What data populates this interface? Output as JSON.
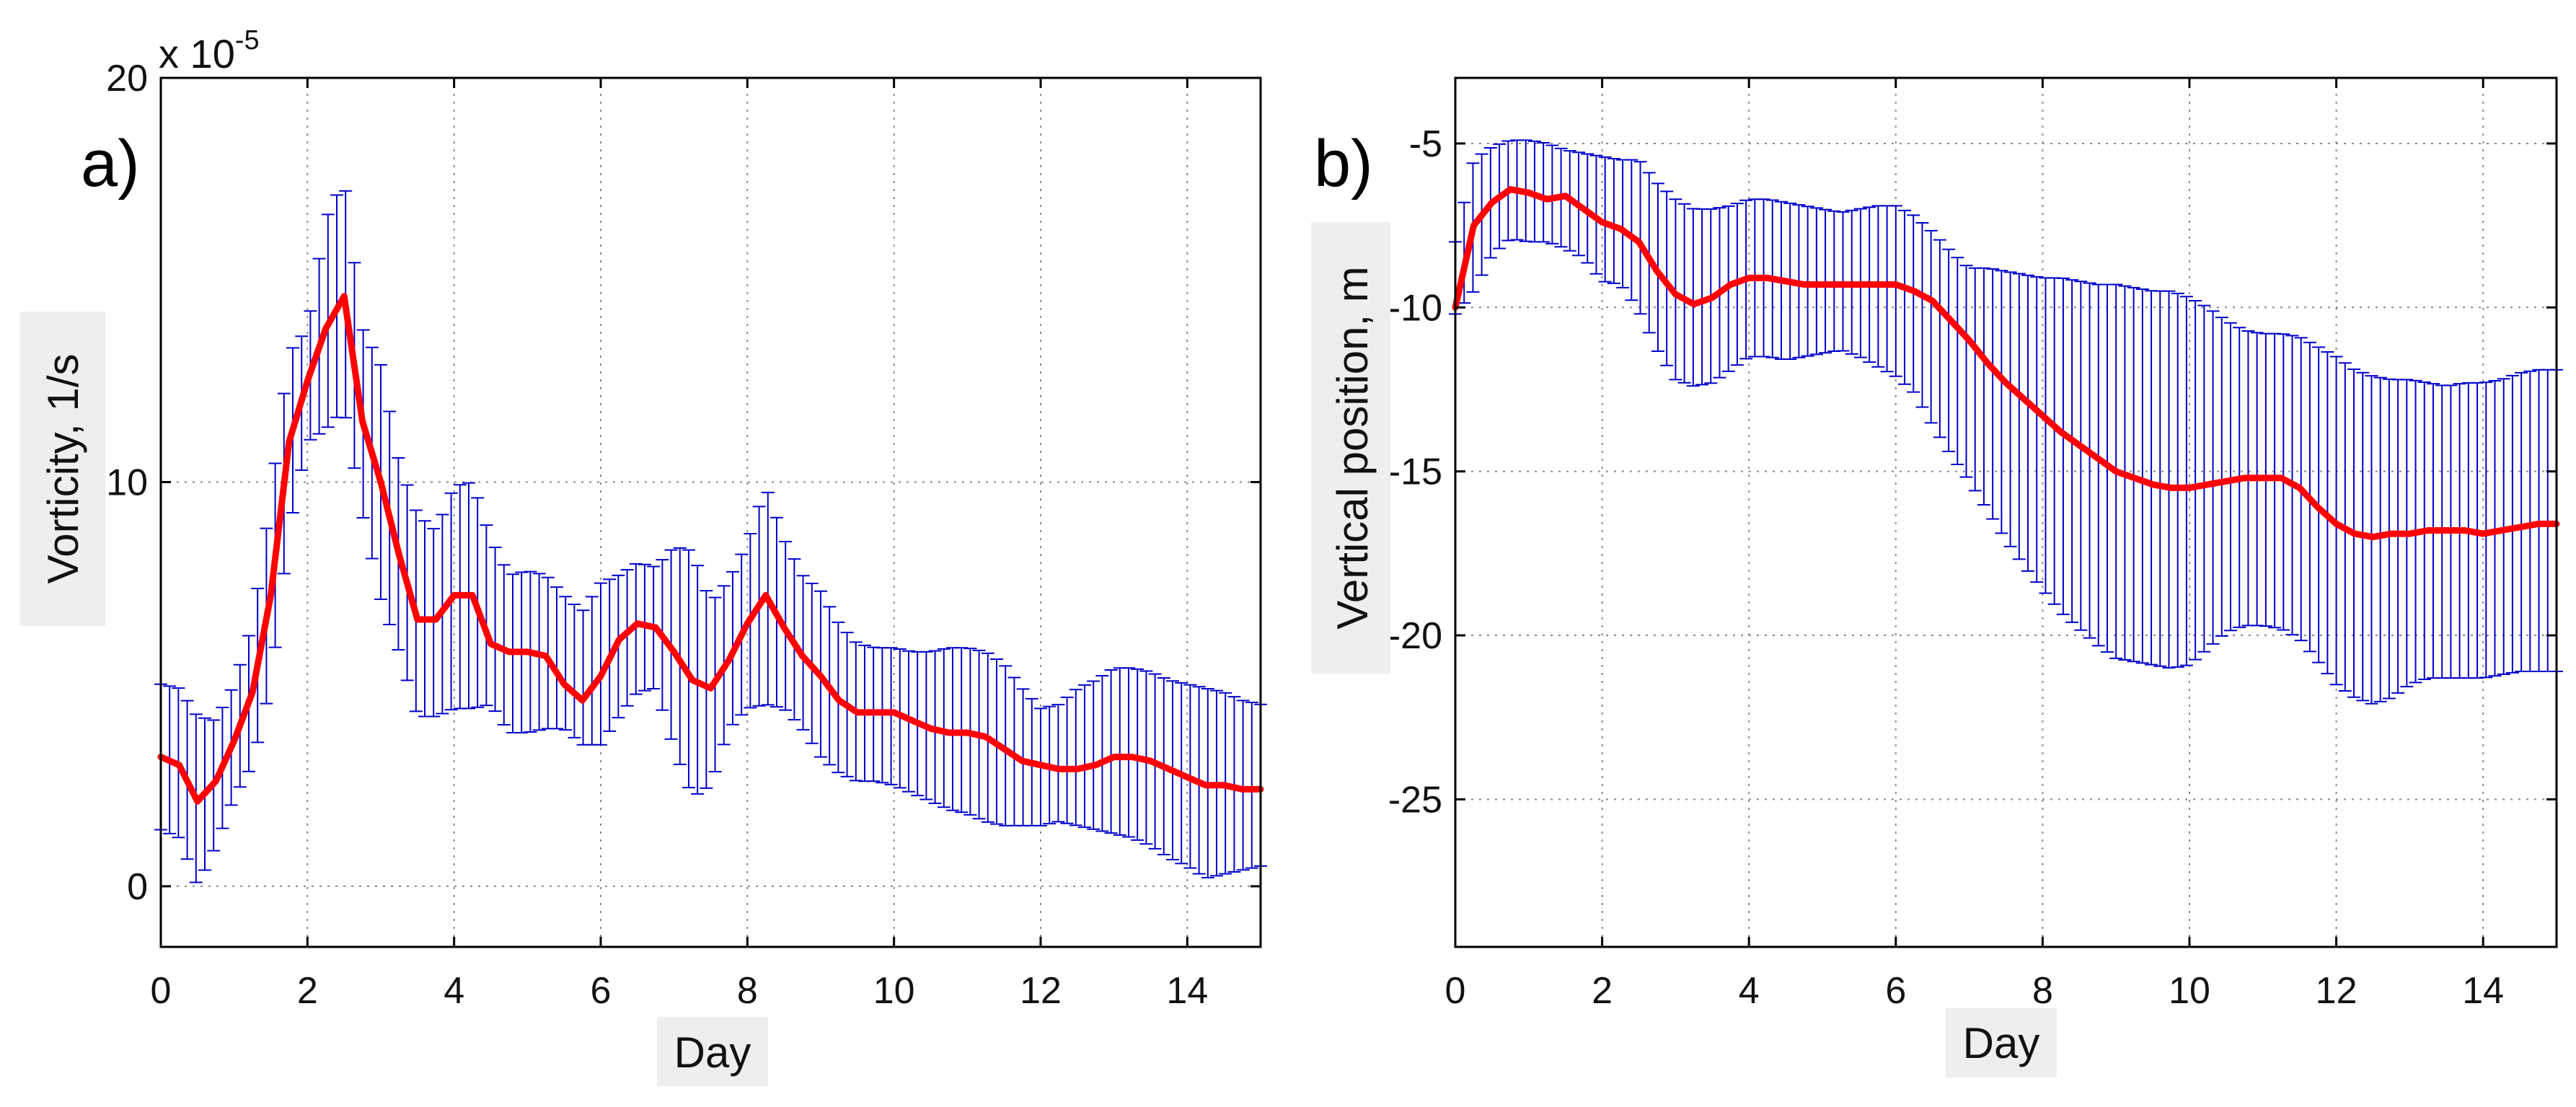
{
  "chart_data": [
    {
      "type": "line",
      "panel_label": "a)",
      "title": "",
      "xlabel": "Day",
      "ylabel": "Vorticity, 1/s",
      "y_multiplier": "x 10",
      "y_multiplier_exponent": "-5",
      "xlim": [
        0,
        15
      ],
      "ylim": [
        -1.5,
        20
      ],
      "xticks": [
        0,
        2,
        4,
        6,
        8,
        10,
        12,
        14
      ],
      "xtick_labels": [
        "0",
        "2",
        "4",
        "6",
        "8",
        "10",
        "12",
        "14"
      ],
      "yticks": [
        0,
        10,
        20
      ],
      "ytick_labels": [
        "0",
        "10",
        "20"
      ],
      "grid": true,
      "legend": "none",
      "series": [
        {
          "name": "mean",
          "color": "#ff0000",
          "x": [
            0,
            0.25,
            0.5,
            0.75,
            1,
            1.25,
            1.5,
            1.75,
            2,
            2.25,
            2.5,
            2.75,
            3,
            3.25,
            3.5,
            3.75,
            4,
            4.25,
            4.5,
            4.75,
            5,
            5.25,
            5.5,
            5.75,
            6,
            6.25,
            6.5,
            6.75,
            7,
            7.25,
            7.5,
            7.75,
            8,
            8.25,
            8.5,
            8.75,
            9,
            9.25,
            9.5,
            9.75,
            10,
            10.25,
            10.5,
            10.75,
            11,
            11.25,
            11.5,
            11.75,
            12,
            12.25,
            12.5,
            12.75,
            13,
            13.25,
            13.5,
            13.75,
            14,
            14.25,
            14.5,
            14.75,
            15
          ],
          "values": [
            3.2,
            3.0,
            2.1,
            2.6,
            3.6,
            4.8,
            7.2,
            11.0,
            12.5,
            13.8,
            14.6,
            11.5,
            10.0,
            8.2,
            6.6,
            6.6,
            7.2,
            7.2,
            6.0,
            5.8,
            5.8,
            5.7,
            5.0,
            4.6,
            5.2,
            6.1,
            6.5,
            6.4,
            5.8,
            5.1,
            4.9,
            5.6,
            6.5,
            7.2,
            6.4,
            5.7,
            5.2,
            4.6,
            4.3,
            4.3,
            4.3,
            4.1,
            3.9,
            3.8,
            3.8,
            3.7,
            3.4,
            3.1,
            3.0,
            2.9,
            2.9,
            3.0,
            3.2,
            3.2,
            3.1,
            2.9,
            2.7,
            2.5,
            2.5,
            2.4,
            2.4
          ]
        },
        {
          "name": "error bar upper",
          "color": "#0000cc",
          "values": [
            5.0,
            4.9,
            4.2,
            4.1,
            5.0,
            6.5,
            9.6,
            13.2,
            13.8,
            16.5,
            17.5,
            13.8,
            12.9,
            10.5,
            9.2,
            8.8,
            9.9,
            10.0,
            8.6,
            7.7,
            7.8,
            7.7,
            7.2,
            6.8,
            7.5,
            7.7,
            8.0,
            7.9,
            8.4,
            8.3,
            7.0,
            7.6,
            8.5,
            9.9,
            8.6,
            7.7,
            7.3,
            6.5,
            6.0,
            5.9,
            5.9,
            5.8,
            5.8,
            5.9,
            5.9,
            5.8,
            5.5,
            4.9,
            4.4,
            4.5,
            4.9,
            5.1,
            5.4,
            5.4,
            5.3,
            5.1,
            5.0,
            4.9,
            4.8,
            4.6,
            4.5
          ]
        },
        {
          "name": "error bar lower",
          "color": "#0000cc",
          "values": [
            1.4,
            1.2,
            0.0,
            1.0,
            2.2,
            3.0,
            5.0,
            8.8,
            11.0,
            11.3,
            11.8,
            9.2,
            7.1,
            5.8,
            4.2,
            4.2,
            4.4,
            4.4,
            4.5,
            3.8,
            3.8,
            3.9,
            3.9,
            3.5,
            3.5,
            4.2,
            4.8,
            4.9,
            3.4,
            2.2,
            2.5,
            3.9,
            4.4,
            4.5,
            4.4,
            3.9,
            3.2,
            2.8,
            2.6,
            2.6,
            2.5,
            2.3,
            2.1,
            1.9,
            1.8,
            1.6,
            1.5,
            1.5,
            1.5,
            1.6,
            1.5,
            1.4,
            1.3,
            1.2,
            1.0,
            0.7,
            0.5,
            0.2,
            0.3,
            0.4,
            0.5
          ]
        }
      ]
    },
    {
      "type": "line",
      "panel_label": "b)",
      "title": "",
      "xlabel": "Day",
      "ylabel": "Vertical position, m",
      "xlim": [
        0,
        15
      ],
      "ylim": [
        -29.5,
        -3
      ],
      "xticks": [
        0,
        2,
        4,
        6,
        8,
        10,
        12,
        14
      ],
      "xtick_labels": [
        "0",
        "2",
        "4",
        "6",
        "8",
        "10",
        "12",
        "14"
      ],
      "yticks": [
        -5,
        -10,
        -15,
        -20,
        -25
      ],
      "ytick_labels": [
        "-5",
        "-10",
        "-15",
        "-20",
        "-25"
      ],
      "grid": true,
      "legend": "none",
      "series": [
        {
          "name": "mean",
          "color": "#ff0000",
          "x": [
            0,
            0.25,
            0.5,
            0.75,
            1,
            1.25,
            1.5,
            1.75,
            2,
            2.25,
            2.5,
            2.75,
            3,
            3.25,
            3.5,
            3.75,
            4,
            4.25,
            4.5,
            4.75,
            5,
            5.25,
            5.5,
            5.75,
            6,
            6.25,
            6.5,
            6.75,
            7,
            7.25,
            7.5,
            7.75,
            8,
            8.25,
            8.5,
            8.75,
            9,
            9.25,
            9.5,
            9.75,
            10,
            10.25,
            10.5,
            10.75,
            11,
            11.25,
            11.5,
            11.75,
            12,
            12.25,
            12.5,
            12.75,
            13,
            13.25,
            13.5,
            13.75,
            14,
            14.25,
            14.5,
            14.75,
            15
          ],
          "values": [
            -10.0,
            -7.5,
            -6.8,
            -6.4,
            -6.5,
            -6.7,
            -6.6,
            -7.0,
            -7.4,
            -7.6,
            -8.0,
            -8.9,
            -9.6,
            -9.9,
            -9.7,
            -9.3,
            -9.1,
            -9.1,
            -9.2,
            -9.3,
            -9.3,
            -9.3,
            -9.3,
            -9.3,
            -9.3,
            -9.5,
            -9.8,
            -10.4,
            -11.0,
            -11.7,
            -12.3,
            -12.8,
            -13.3,
            -13.8,
            -14.2,
            -14.6,
            -15.0,
            -15.2,
            -15.4,
            -15.5,
            -15.5,
            -15.4,
            -15.3,
            -15.2,
            -15.2,
            -15.2,
            -15.5,
            -16.1,
            -16.6,
            -16.9,
            -17.0,
            -16.9,
            -16.9,
            -16.8,
            -16.8,
            -16.8,
            -16.9,
            -16.8,
            -16.7,
            -16.6,
            -16.6
          ]
        },
        {
          "name": "error bar upper",
          "color": "#0000cc",
          "values": [
            -8.0,
            -5.5,
            -5.1,
            -4.9,
            -4.9,
            -5.0,
            -5.2,
            -5.3,
            -5.4,
            -5.5,
            -5.5,
            -6.2,
            -6.7,
            -7.0,
            -7.0,
            -6.9,
            -6.7,
            -6.7,
            -6.8,
            -6.9,
            -7.0,
            -7.1,
            -7.0,
            -6.9,
            -6.9,
            -7.2,
            -7.7,
            -8.3,
            -8.8,
            -8.8,
            -8.9,
            -9.0,
            -9.1,
            -9.1,
            -9.2,
            -9.3,
            -9.3,
            -9.4,
            -9.5,
            -9.5,
            -9.7,
            -10.0,
            -10.4,
            -10.7,
            -10.8,
            -10.8,
            -10.9,
            -11.2,
            -11.5,
            -11.9,
            -12.1,
            -12.2,
            -12.2,
            -12.3,
            -12.4,
            -12.3,
            -12.3,
            -12.2,
            -12.0,
            -11.9,
            -11.9
          ]
        },
        {
          "name": "error bar lower",
          "color": "#0000cc",
          "values": [
            -10.2,
            -9.5,
            -8.4,
            -7.9,
            -8.0,
            -8.0,
            -8.2,
            -8.5,
            -9.2,
            -9.3,
            -10.1,
            -11.3,
            -12.2,
            -12.4,
            -12.3,
            -11.9,
            -11.5,
            -11.5,
            -11.6,
            -11.5,
            -11.4,
            -11.3,
            -11.5,
            -11.8,
            -12.1,
            -12.6,
            -13.6,
            -14.5,
            -15.3,
            -16.2,
            -17.1,
            -17.9,
            -18.6,
            -19.3,
            -19.8,
            -20.3,
            -20.7,
            -20.8,
            -20.9,
            -21.0,
            -20.9,
            -20.4,
            -19.9,
            -19.7,
            -19.7,
            -19.8,
            -20.1,
            -20.8,
            -21.5,
            -21.9,
            -22.1,
            -21.9,
            -21.5,
            -21.3,
            -21.3,
            -21.3,
            -21.3,
            -21.2,
            -21.1,
            -21.1,
            -21.1
          ]
        }
      ]
    }
  ]
}
